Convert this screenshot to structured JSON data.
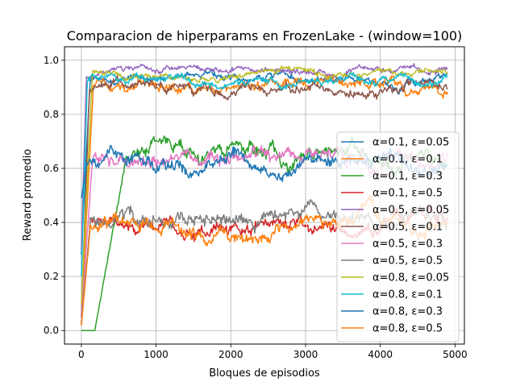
{
  "chart_data": {
    "type": "line",
    "title": "Comparacion de hiperparams en FrozenLake - (window=100)",
    "xlabel": "Bloques de episodios",
    "ylabel": "Reward promedio",
    "xlim": [
      -225,
      5125
    ],
    "ylim": [
      -0.05,
      1.05
    ],
    "xticks": [
      0,
      1000,
      2000,
      3000,
      4000,
      5000
    ],
    "xtick_labels": [
      "0",
      "1000",
      "2000",
      "3000",
      "4000",
      "5000"
    ],
    "yticks": [
      0.0,
      0.2,
      0.4,
      0.6,
      0.8,
      1.0
    ],
    "ytick_labels": [
      "0.0",
      "0.2",
      "0.4",
      "0.6",
      "0.8",
      "1.0"
    ],
    "grid": true,
    "legend_position": "center-right",
    "x_range": [
      0,
      4900
    ],
    "series": [
      {
        "name": "α=0.1, ε=0.05",
        "color": "#1f77b4",
        "level": 0.935,
        "noise": 0.025,
        "start": 0.28,
        "rise_end": 120
      },
      {
        "name": "α=0.1, ε=0.1",
        "color": "#ff7f0e",
        "level": 0.9,
        "noise": 0.035,
        "start": 0.05,
        "rise_end": 160
      },
      {
        "name": "α=0.1, ε=0.3",
        "color": "#2ca02c",
        "level": 0.64,
        "noise": 0.05,
        "start": 0.0,
        "rise_end": 600,
        "flat_until": 180
      },
      {
        "name": "α=0.1, ε=0.5",
        "color": "#d62728",
        "level": 0.39,
        "noise": 0.045,
        "start": 0.02,
        "rise_end": 120
      },
      {
        "name": "α=0.5, ε=0.05",
        "color": "#9467bd",
        "level": 0.955,
        "noise": 0.02,
        "start": 0.3,
        "rise_end": 70
      },
      {
        "name": "α=0.5, ε=0.1",
        "color": "#8c564b",
        "level": 0.9,
        "noise": 0.03,
        "start": 0.05,
        "rise_end": 110
      },
      {
        "name": "α=0.5, ε=0.3",
        "color": "#e377c2",
        "level": 0.63,
        "noise": 0.05,
        "start": 0.05,
        "rise_end": 150
      },
      {
        "name": "α=0.5, ε=0.5",
        "color": "#7f7f7f",
        "level": 0.4,
        "noise": 0.05,
        "start": 0.03,
        "rise_end": 120
      },
      {
        "name": "α=0.8, ε=0.05",
        "color": "#bcbd22",
        "level": 0.955,
        "noise": 0.02,
        "start": 0.1,
        "rise_end": 150
      },
      {
        "name": "α=0.8, ε=0.1",
        "color": "#17becf",
        "level": 0.915,
        "noise": 0.025,
        "start": 0.2,
        "rise_end": 80
      },
      {
        "name": "α=0.8, ε=0.3",
        "color": "#1f77b4",
        "level": 0.63,
        "noise": 0.045,
        "start": 0.49,
        "rise_end": 80
      },
      {
        "name": "α=0.8, ε=0.5",
        "color": "#ff7f0e",
        "level": 0.38,
        "noise": 0.045,
        "start": 0.02,
        "rise_end": 120
      }
    ]
  }
}
